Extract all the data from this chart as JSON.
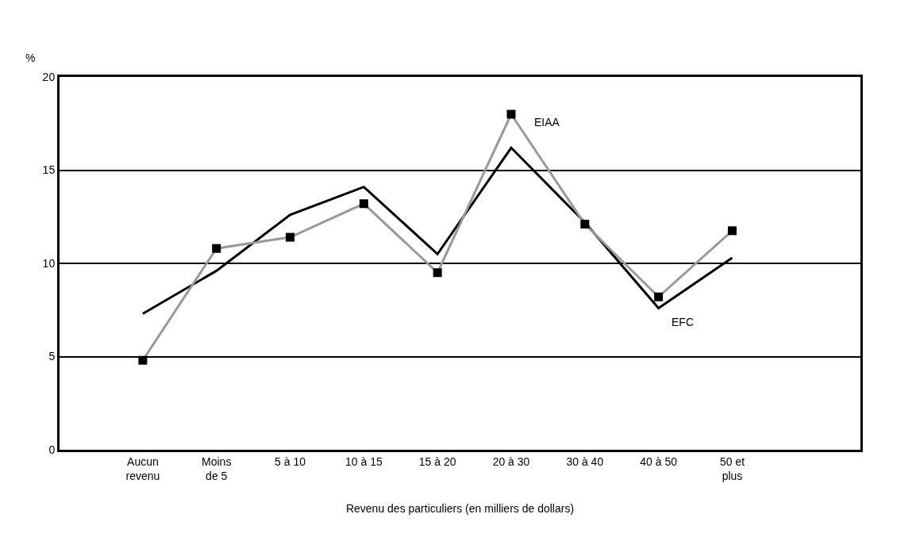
{
  "chart_data": {
    "type": "line",
    "xlabel": "Revenu des particuliers (en milliers de dollars)",
    "ylabel": "%",
    "categories": [
      "Aucun\nrevenu",
      "Moins\nde 5",
      "5 à 10",
      "10 à 15",
      "15 à 20",
      "20 à 30",
      "30 à 40",
      "40 à 50",
      "50 et\nplus"
    ],
    "series": [
      {
        "name": "EFC",
        "color": "#000000",
        "marker": "none",
        "values": [
          7.3,
          9.6,
          12.6,
          14.1,
          10.5,
          16.2,
          12.2,
          7.6,
          10.3
        ]
      },
      {
        "name": "EIAA",
        "color": "#999999",
        "marker": "square",
        "values": [
          4.8,
          10.8,
          11.4,
          13.2,
          9.5,
          18.0,
          12.1,
          8.2,
          11.75
        ]
      }
    ],
    "ylim": [
      0,
      20
    ],
    "yticks": [
      0,
      5,
      10,
      15,
      20
    ],
    "grid": "y",
    "legend": false
  }
}
